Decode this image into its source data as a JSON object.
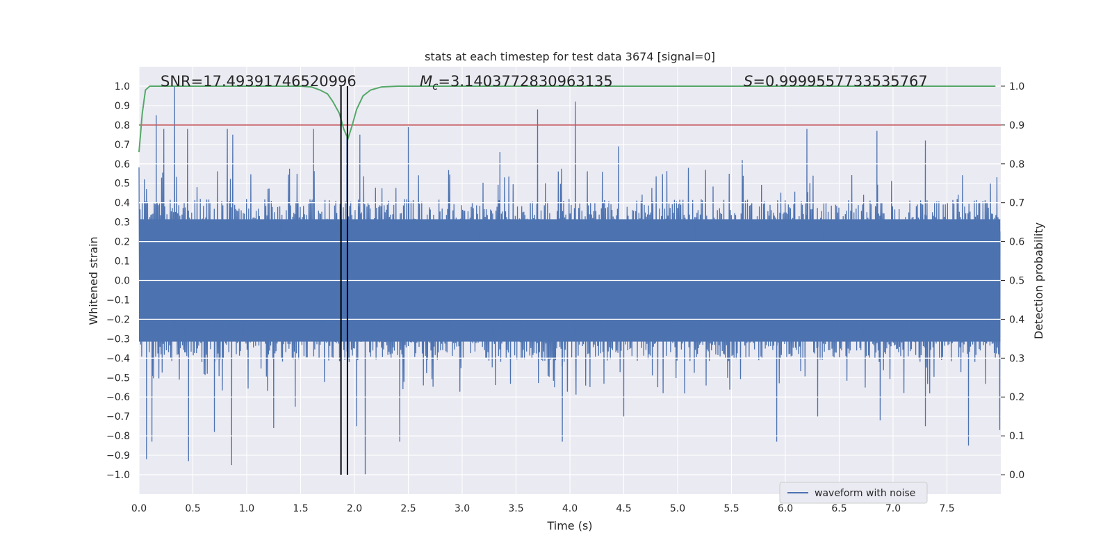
{
  "chart_data": {
    "type": "line",
    "title": "stats at each timestep for test data 3674 [signal=0]",
    "xlabel": "Time (s)",
    "ylabel": "Whitened strain",
    "y2label": "Detection probability",
    "xlim": [
      0.0,
      8.0
    ],
    "ylim": [
      -1.1,
      1.1
    ],
    "y2lim": [
      -0.05,
      1.05
    ],
    "xticks": [
      "0.0",
      "0.5",
      "1.0",
      "1.5",
      "2.0",
      "2.5",
      "3.0",
      "3.5",
      "4.0",
      "4.5",
      "5.0",
      "5.5",
      "6.0",
      "6.5",
      "7.0",
      "7.5"
    ],
    "yticks": [
      "1.0",
      "0.9",
      "0.8",
      "0.7",
      "0.6",
      "0.5",
      "0.4",
      "0.3",
      "0.2",
      "0.1",
      "0.0",
      "−0.1",
      "−0.2",
      "−0.3",
      "−0.4",
      "−0.5",
      "−0.6",
      "−0.7",
      "−0.8",
      "−0.9",
      "−1.0"
    ],
    "y2ticks": [
      "1.0",
      "0.9",
      "0.8",
      "0.7",
      "0.6",
      "0.5",
      "0.4",
      "0.3",
      "0.2",
      "0.1",
      "0.0"
    ],
    "grid": true,
    "legend_placement": "lower-right",
    "annotations": {
      "snr": "SNR=17.49391746520996",
      "mc_symbol": "M",
      "mc_sub": "c",
      "mc_value": "=3.1403772830963135",
      "s_symbol": "S",
      "s_value": "=0.9999557733535767"
    },
    "series": [
      {
        "name": "waveform with noise",
        "axis": "left",
        "color": "#4c72b0",
        "envelope_typical": 0.42,
        "peaks_positive": [
          [
            0.05,
            0.52
          ],
          [
            0.16,
            0.85
          ],
          [
            0.23,
            0.78
          ],
          [
            0.33,
            1.0
          ],
          [
            0.45,
            0.78
          ],
          [
            0.82,
            0.78
          ],
          [
            0.87,
            0.75
          ],
          [
            1.62,
            0.78
          ],
          [
            1.93,
            0.75
          ],
          [
            2.05,
            0.75
          ],
          [
            2.5,
            0.79
          ],
          [
            3.35,
            0.66
          ],
          [
            3.7,
            0.88
          ],
          [
            4.05,
            0.92
          ],
          [
            4.45,
            0.69
          ],
          [
            5.6,
            0.62
          ],
          [
            6.2,
            0.78
          ],
          [
            6.85,
            0.77
          ],
          [
            7.3,
            0.72
          ]
        ],
        "peaks_negative": [
          [
            0.07,
            -0.92
          ],
          [
            0.12,
            -0.83
          ],
          [
            0.46,
            -0.93
          ],
          [
            0.7,
            -0.78
          ],
          [
            0.86,
            -0.95
          ],
          [
            1.25,
            -0.76
          ],
          [
            1.45,
            -0.65
          ],
          [
            2.02,
            -0.75
          ],
          [
            2.1,
            -1.0
          ],
          [
            2.42,
            -0.83
          ],
          [
            3.93,
            -0.83
          ],
          [
            4.5,
            -0.7
          ],
          [
            5.92,
            -0.83
          ],
          [
            6.3,
            -0.7
          ],
          [
            6.88,
            -0.72
          ],
          [
            7.3,
            -0.75
          ],
          [
            7.7,
            -0.85
          ],
          [
            7.99,
            -0.77
          ]
        ]
      },
      {
        "name": "",
        "axis": "right",
        "color": "#55a868",
        "x": [
          0.0,
          0.03,
          0.06,
          0.1,
          0.2,
          0.4,
          0.8,
          1.2,
          1.5,
          1.6,
          1.68,
          1.75,
          1.8,
          1.86,
          1.9,
          1.94,
          1.98,
          2.02,
          2.08,
          2.15,
          2.25,
          2.4,
          3.0,
          4.0,
          5.0,
          6.0,
          7.0,
          7.95
        ],
        "values": [
          0.83,
          0.93,
          0.99,
          1.0,
          1.0,
          1.0,
          1.0,
          1.0,
          1.0,
          0.998,
          0.99,
          0.98,
          0.96,
          0.93,
          0.89,
          0.865,
          0.9,
          0.94,
          0.975,
          0.99,
          0.998,
          1.0,
          1.0,
          1.0,
          1.0,
          1.0,
          1.0,
          1.0
        ]
      }
    ],
    "threshold": {
      "value": 0.9,
      "axis": "right",
      "color": "#c44e52"
    },
    "vlines": {
      "x": [
        1.875,
        1.935
      ],
      "ymin": -1.0,
      "ymax": 1.0,
      "color": "#000000"
    }
  }
}
